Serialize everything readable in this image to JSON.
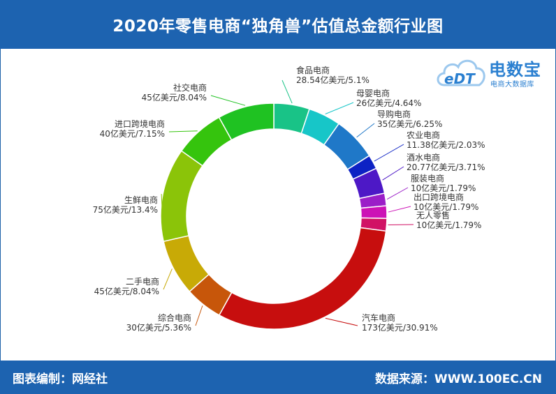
{
  "header": {
    "title": "2020年零售电商“独角兽”估值总金额行业图"
  },
  "footer": {
    "left": "图表编制：网经社",
    "right": "数据来源：WWW.100EC.CN"
  },
  "logo": {
    "brand": "电数宝",
    "sub": "电商大数据库",
    "mark": "eDT"
  },
  "chart_data": {
    "type": "pie",
    "title": "2020年零售电商“独角兽”估值总金额行业图",
    "donut": true,
    "slices": [
      {
        "name": "食品电商",
        "value": 28.54,
        "label": "28.54亿美元/5.1%",
        "color": "#19c387"
      },
      {
        "name": "母婴电商",
        "value": 26,
        "label": "26亿美元/4.64%",
        "color": "#17c6c8"
      },
      {
        "name": "导购电商",
        "value": 35,
        "label": "35亿美元/6.25%",
        "color": "#1f78c8"
      },
      {
        "name": "农业电商",
        "value": 11.38,
        "label": "11.38亿美元/2.03%",
        "color": "#0d22c4"
      },
      {
        "name": "酒水电商",
        "value": 20.77,
        "label": "20.77亿美元/3.71%",
        "color": "#4d18c6"
      },
      {
        "name": "服装电商",
        "value": 10,
        "label": "10亿美元/1.79%",
        "color": "#9b1ec8"
      },
      {
        "name": "出口跨境电商",
        "value": 10,
        "label": "10亿美元/1.79%",
        "color": "#cc12b6"
      },
      {
        "name": "无人零售",
        "value": 10,
        "label": "10亿美元/1.79%",
        "color": "#d11265"
      },
      {
        "name": "汽车电商",
        "value": 173,
        "label": "173亿美元/30.91%",
        "color": "#c70e0e"
      },
      {
        "name": "综合电商",
        "value": 30,
        "label": "30亿美元/5.36%",
        "color": "#c7560a"
      },
      {
        "name": "二手电商",
        "value": 45,
        "label": "45亿美元/8.04%",
        "color": "#c8aa06"
      },
      {
        "name": "生鲜电商",
        "value": 75,
        "label": "75亿美元/13.4%",
        "color": "#8bc409"
      },
      {
        "name": "进口跨境电商",
        "value": 40,
        "label": "40亿美元/7.15%",
        "color": "#35c40d"
      },
      {
        "name": "社交电商",
        "value": 45,
        "label": "45亿美元/8.04%",
        "color": "#1fc222"
      }
    ]
  }
}
